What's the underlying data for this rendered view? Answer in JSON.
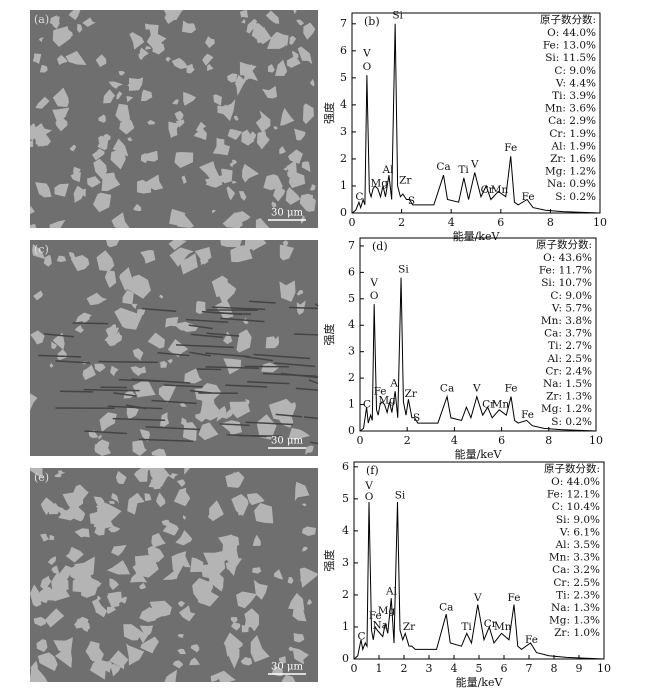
{
  "images": [
    {
      "label": "(a)",
      "scale": "30 μm"
    },
    {
      "label": "(c)",
      "scale": "30 μm"
    },
    {
      "label": "(e)",
      "scale": "30 μm"
    }
  ],
  "chart_data": [
    {
      "type": "line",
      "label": "(b)",
      "xlabel": "能量/keV",
      "ylabel": "强度",
      "x": [
        0,
        0.15,
        0.28,
        0.35,
        0.45,
        0.52,
        0.6,
        0.7,
        0.77,
        0.85,
        0.93,
        1.04,
        1.15,
        1.25,
        1.35,
        1.49,
        1.6,
        1.74,
        1.84,
        1.95,
        2.05,
        2.2,
        2.31,
        2.45,
        2.8,
        3.3,
        3.69,
        3.85,
        4.3,
        4.51,
        4.7,
        4.95,
        5.2,
        5.41,
        5.6,
        5.9,
        6.2,
        6.4,
        6.55,
        6.7,
        7.06,
        7.3,
        7.8,
        8.5,
        10
      ],
      "series": [
        {
          "color": "#000000",
          "values": [
            0,
            0.1,
            0.4,
            0.2,
            0.5,
            0.3,
            5.1,
            0.8,
            0.6,
            0.9,
            1.0,
            0.9,
            0.6,
            1.0,
            0.6,
            1.4,
            0.5,
            7.0,
            1.0,
            0.6,
            0.7,
            0.5,
            0.5,
            0.3,
            0.3,
            0.3,
            1.4,
            0.5,
            0.4,
            1.3,
            0.5,
            1.5,
            0.6,
            1.0,
            0.5,
            0.8,
            0.6,
            2.1,
            0.4,
            0.3,
            0.5,
            0.2,
            0.1,
            0.05,
            0
          ]
        }
      ],
      "xlim": [
        0,
        10
      ],
      "ylim": [
        0,
        7.4
      ],
      "xticks": [
        0,
        2,
        4,
        6,
        8,
        10
      ],
      "yticks": [
        0,
        1,
        2,
        3,
        4,
        5,
        6,
        7
      ],
      "annotations": [
        {
          "text": "V",
          "x": 0.6,
          "y": 5.9
        },
        {
          "text": "O",
          "x": 0.6,
          "y": 5.4
        },
        {
          "text": "C",
          "x": 0.3,
          "y": 0.6
        },
        {
          "text": "Mg",
          "x": 1.1,
          "y": 1.1
        },
        {
          "text": "Al",
          "x": 1.45,
          "y": 1.6
        },
        {
          "text": "Si",
          "x": 1.84,
          "y": 7.3
        },
        {
          "text": "Zr",
          "x": 2.15,
          "y": 1.2
        },
        {
          "text": "S",
          "x": 2.4,
          "y": 0.45
        },
        {
          "text": "Ca",
          "x": 3.69,
          "y": 1.7
        },
        {
          "text": "Ti",
          "x": 4.5,
          "y": 1.6
        },
        {
          "text": "V",
          "x": 4.95,
          "y": 1.8
        },
        {
          "text": "Cr",
          "x": 5.45,
          "y": 0.85
        },
        {
          "text": "Mn",
          "x": 5.95,
          "y": 0.85
        },
        {
          "text": "Fe",
          "x": 6.4,
          "y": 2.4
        },
        {
          "text": "Fe",
          "x": 7.1,
          "y": 0.6
        }
      ],
      "legend_title": "原子数分数:",
      "legend_items": [
        "O: 44.0%",
        "Fe: 13.0%",
        "Si: 11.5%",
        "C: 9.0%",
        "V: 4.4%",
        "Ti: 3.9%",
        "Mn: 3.6%",
        "Ca: 2.9%",
        "Cr: 1.9%",
        "Al: 1.9%",
        "Zr: 1.6%",
        "Mg: 1.2%",
        "Na: 0.9%",
        "S: 0.2%"
      ]
    },
    {
      "type": "line",
      "label": "(d)",
      "xlabel": "能量/keV",
      "ylabel": "强度",
      "x": [
        0,
        0.15,
        0.28,
        0.35,
        0.45,
        0.52,
        0.6,
        0.7,
        0.77,
        0.85,
        0.93,
        1.04,
        1.15,
        1.25,
        1.35,
        1.49,
        1.6,
        1.74,
        1.84,
        1.95,
        2.05,
        2.2,
        2.31,
        2.45,
        2.8,
        3.3,
        3.69,
        3.85,
        4.3,
        4.51,
        4.7,
        4.95,
        5.2,
        5.41,
        5.6,
        5.9,
        6.2,
        6.4,
        6.55,
        6.7,
        7.06,
        7.3,
        7.8,
        8.5,
        10
      ],
      "series": [
        {
          "color": "#000000",
          "values": [
            0,
            0.1,
            0.9,
            0.3,
            0.6,
            0.4,
            4.8,
            0.8,
            0.6,
            1.0,
            1.1,
            1.0,
            0.7,
            1.1,
            0.7,
            1.5,
            0.5,
            5.8,
            1.1,
            0.6,
            1.2,
            0.5,
            0.5,
            0.3,
            0.3,
            0.3,
            1.3,
            0.5,
            0.4,
            0.9,
            0.5,
            1.3,
            0.6,
            0.9,
            0.5,
            0.8,
            0.6,
            1.3,
            0.4,
            0.3,
            0.4,
            0.2,
            0.1,
            0.05,
            0
          ]
        }
      ],
      "xlim": [
        0,
        10
      ],
      "ylim": [
        0,
        7.3
      ],
      "xticks": [
        0,
        2,
        4,
        6,
        8,
        10
      ],
      "yticks": [
        0,
        1,
        2,
        3,
        4,
        5,
        6,
        7
      ],
      "annotations": [
        {
          "text": "V",
          "x": 0.6,
          "y": 5.6
        },
        {
          "text": "O",
          "x": 0.6,
          "y": 5.1
        },
        {
          "text": "C",
          "x": 0.3,
          "y": 1.0
        },
        {
          "text": "Fe",
          "x": 0.85,
          "y": 1.5
        },
        {
          "text": "Mg",
          "x": 1.15,
          "y": 1.15
        },
        {
          "text": "A",
          "x": 1.45,
          "y": 1.8
        },
        {
          "text": "Si",
          "x": 1.84,
          "y": 6.1
        },
        {
          "text": "Zr",
          "x": 2.15,
          "y": 1.4
        },
        {
          "text": "S",
          "x": 2.4,
          "y": 0.5
        },
        {
          "text": "Ca",
          "x": 3.69,
          "y": 1.6
        },
        {
          "text": "V",
          "x": 4.95,
          "y": 1.6
        },
        {
          "text": "Cr",
          "x": 5.45,
          "y": 1.0
        },
        {
          "text": "Mn",
          "x": 5.95,
          "y": 1.0
        },
        {
          "text": "Fe",
          "x": 6.4,
          "y": 1.6
        },
        {
          "text": "Fe",
          "x": 7.1,
          "y": 0.6
        }
      ],
      "legend_title": "原子数分数:",
      "legend_items": [
        "O: 43.6%",
        "Fe: 11.7%",
        "Si: 10.7%",
        "C: 9.0%",
        "V: 5.7%",
        "Mn: 3.8%",
        "Ca: 3.7%",
        "Ti: 2.7%",
        "Al: 2.5%",
        "Cr: 2.4%",
        "Na: 1.5%",
        "Zr: 1.3%",
        "Mg: 1.2%",
        "S: 0.2%"
      ]
    },
    {
      "type": "line",
      "label": "(f)",
      "xlabel": "能量/keV",
      "ylabel": "强度",
      "x": [
        0,
        0.15,
        0.28,
        0.35,
        0.45,
        0.52,
        0.6,
        0.7,
        0.77,
        0.85,
        0.93,
        1.04,
        1.15,
        1.25,
        1.35,
        1.49,
        1.6,
        1.74,
        1.84,
        1.95,
        2.05,
        2.2,
        2.31,
        2.45,
        2.8,
        3.3,
        3.69,
        3.85,
        4.3,
        4.51,
        4.7,
        4.95,
        5.2,
        5.41,
        5.6,
        5.9,
        6.2,
        6.4,
        6.55,
        6.7,
        7.06,
        7.3,
        7.8,
        8.5,
        10
      ],
      "series": [
        {
          "color": "#000000",
          "values": [
            0,
            0.1,
            0.6,
            0.3,
            0.5,
            0.4,
            4.9,
            0.9,
            0.6,
            1.0,
            0.9,
            0.8,
            0.7,
            1.1,
            0.8,
            1.9,
            0.5,
            4.9,
            0.9,
            0.6,
            0.8,
            0.4,
            0.4,
            0.3,
            0.3,
            0.3,
            1.4,
            0.5,
            0.4,
            0.8,
            0.5,
            1.7,
            0.6,
            1.0,
            0.5,
            0.8,
            0.6,
            1.7,
            0.4,
            0.3,
            0.5,
            0.2,
            0.1,
            0.05,
            0
          ]
        }
      ],
      "xlim": [
        0,
        10
      ],
      "ylim": [
        0,
        6.15
      ],
      "xticks": [
        0,
        1,
        2,
        3,
        4,
        5,
        6,
        7,
        8,
        9,
        10
      ],
      "yticks": [
        0,
        1,
        2,
        3,
        4,
        5,
        6
      ],
      "annotations": [
        {
          "text": "V",
          "x": 0.6,
          "y": 5.4
        },
        {
          "text": "O",
          "x": 0.6,
          "y": 5.05
        },
        {
          "text": "C",
          "x": 0.3,
          "y": 0.7
        },
        {
          "text": "Fe",
          "x": 0.85,
          "y": 1.35
        },
        {
          "text": "Na",
          "x": 1.05,
          "y": 1.05
        },
        {
          "text": "Mg",
          "x": 1.3,
          "y": 1.5
        },
        {
          "text": "Al",
          "x": 1.5,
          "y": 2.1
        },
        {
          "text": "Si",
          "x": 1.84,
          "y": 5.1
        },
        {
          "text": "Zr",
          "x": 2.2,
          "y": 1.0
        },
        {
          "text": "Ca",
          "x": 3.69,
          "y": 1.6
        },
        {
          "text": "Ti",
          "x": 4.5,
          "y": 1.0
        },
        {
          "text": "V",
          "x": 4.95,
          "y": 1.9
        },
        {
          "text": "Cr",
          "x": 5.45,
          "y": 1.1
        },
        {
          "text": "Mn",
          "x": 5.95,
          "y": 1.0
        },
        {
          "text": "Fe",
          "x": 6.4,
          "y": 1.9
        },
        {
          "text": "Fe",
          "x": 7.1,
          "y": 0.6
        }
      ],
      "legend_title": "原子数分数:",
      "legend_items": [
        "O: 44.0%",
        "Fe: 12.1%",
        "C: 10.4%",
        "Si: 9.0%",
        "V: 6.1%",
        "Al: 3.5%",
        "Mn: 3.3%",
        "Ca: 3.2%",
        "Cr: 2.5%",
        "Ti: 2.3%",
        "Na: 1.3%",
        "Mg: 1.3%",
        "Zr: 1.0%"
      ]
    }
  ]
}
